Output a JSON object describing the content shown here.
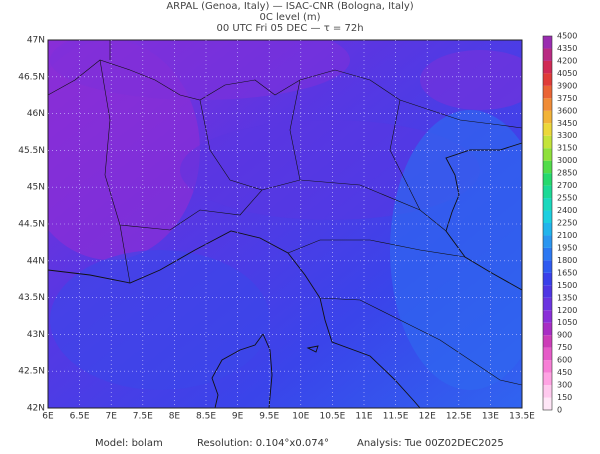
{
  "header": {
    "line1": "ARPAL (Genoa, Italy)  —  ISAC-CNR (Bologna, Italy)",
    "line2": "0C level (m)",
    "line3": "00 UTC Fri 05 DEC  —  τ = 72h"
  },
  "map": {
    "lat_labels": [
      "47N",
      "46.5N",
      "46N",
      "45.5N",
      "45N",
      "44.5N",
      "44N",
      "43.5N",
      "43N",
      "42.5N",
      "42N"
    ],
    "lon_labels": [
      "6E",
      "6.5E",
      "7E",
      "7.5E",
      "8E",
      "8.5E",
      "9E",
      "9.5E",
      "10E",
      "10.5E",
      "11E",
      "11.5E",
      "12E",
      "12.5E",
      "13E",
      "13.5E"
    ]
  },
  "colorbar": {
    "labels": [
      "0",
      "150",
      "300",
      "450",
      "600",
      "750",
      "900",
      "1050",
      "1200",
      "1350",
      "1500",
      "1650",
      "1800",
      "1950",
      "2100",
      "2250",
      "2400",
      "2550",
      "2700",
      "2850",
      "3000",
      "3150",
      "3300",
      "3450",
      "3600",
      "3750",
      "3900",
      "4050",
      "4200",
      "4350",
      "4500"
    ],
    "colors": [
      "#ffe6f7",
      "#ffc9ee",
      "#ffa3e3",
      "#f77fd6",
      "#e55bc8",
      "#cc3db8",
      "#a82ec4",
      "#8a2fd8",
      "#6b34e0",
      "#4f36e4",
      "#3a40ea",
      "#2f5af0",
      "#2c78f2",
      "#2b96f0",
      "#22b4ec",
      "#1ccfe0",
      "#1ad8bd",
      "#1cd996",
      "#26d96e",
      "#52dc4a",
      "#8fe03a",
      "#c4e43a",
      "#ecd83a",
      "#f2b338",
      "#f08c36",
      "#ea6434",
      "#e03c38",
      "#d02a55",
      "#b82a82",
      "#9a2cb0"
    ]
  },
  "footer": {
    "model": "Model: bolam",
    "resolution": "Resolution: 0.104°x0.074°",
    "analysis": "Analysis: Tue 00Z02DEC2025"
  }
}
